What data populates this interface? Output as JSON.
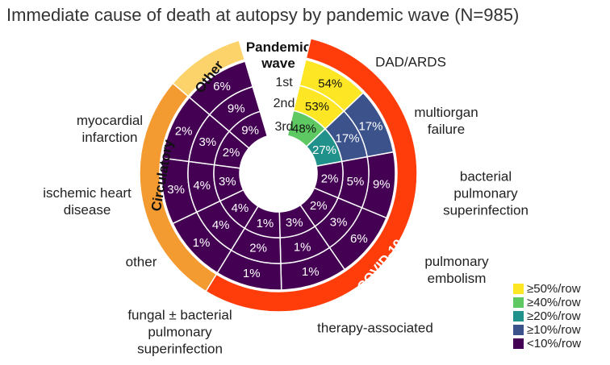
{
  "chart_data": {
    "type": "radial-heatmap",
    "title": "Immediate cause of death at autopsy by pandemic wave (N=985)",
    "ring_axis_title": "Pandemic wave",
    "categories": [
      "DAD/ARDS",
      "multiorgan failure",
      "bacterial pulmonary superinfection",
      "pulmonary embolism",
      "therapy-associated",
      "fungal ± bacterial pulmonary superinfection",
      "other",
      "ischemic heart disease",
      "myocardial infarction",
      null
    ],
    "category_groups": [
      "COVID-19",
      "COVID-19",
      "COVID-19",
      "COVID-19",
      "COVID-19",
      "COVID-19",
      "Circulatory",
      "Circulatory",
      "Circulatory",
      "Other"
    ],
    "groups": [
      {
        "name": "COVID-19",
        "color": "#ff3d0a"
      },
      {
        "name": "Circulatory",
        "color": "#f39a31"
      },
      {
        "name": "Other",
        "color": "#fcd36b"
      }
    ],
    "series": [
      {
        "name": "1st",
        "values": [
          54,
          17,
          9,
          6,
          1,
          1,
          1,
          3,
          2,
          6
        ],
        "value_labels": [
          "54%",
          "17%",
          "9%",
          "6%",
          "1%",
          "1%",
          "1%",
          "3%",
          "2%",
          "6%"
        ],
        "colors": [
          "#fde725",
          "#3b528b",
          "#440154",
          "#440154",
          "#440154",
          "#440154",
          "#440154",
          "#440154",
          "#440154",
          "#440154"
        ]
      },
      {
        "name": "2nd",
        "values": [
          53,
          17,
          5,
          3,
          1,
          2,
          4,
          4,
          3,
          9
        ],
        "value_labels": [
          "53%",
          "17%",
          "5%",
          "3%",
          "1%",
          "2%",
          "4%",
          "4%",
          "3%",
          "9%"
        ],
        "colors": [
          "#fde725",
          "#3b528b",
          "#440154",
          "#440154",
          "#440154",
          "#440154",
          "#440154",
          "#440154",
          "#440154",
          "#440154"
        ]
      },
      {
        "name": "3rd",
        "values": [
          48,
          27,
          2,
          2,
          3,
          1,
          4,
          3,
          2,
          9
        ],
        "value_labels": [
          "48%",
          "27%",
          "2%",
          "2%",
          "3%",
          "1%",
          "4%",
          "3%",
          "2%",
          "9%"
        ],
        "colors": [
          "#5ec962",
          "#21918c",
          "#440154",
          "#440154",
          "#440154",
          "#440154",
          "#440154",
          "#440154",
          "#440154",
          "#440154"
        ]
      }
    ],
    "legend": [
      {
        "label": "≥50%/row",
        "color": "#fde725"
      },
      {
        "label": "≥40%/row",
        "color": "#5ec962"
      },
      {
        "label": "≥20%/row",
        "color": "#21918c"
      },
      {
        "label": "≥10%/row",
        "color": "#3b528b"
      },
      {
        "label": "<10%/row",
        "color": "#440154"
      }
    ]
  }
}
